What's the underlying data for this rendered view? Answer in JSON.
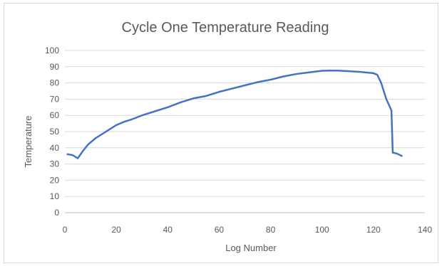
{
  "chart_data": {
    "type": "line",
    "title": "Cycle One Temperature Reading",
    "xlabel": "Log Number",
    "ylabel": "Temperature",
    "xlim": [
      0,
      140
    ],
    "ylim": [
      0,
      100
    ],
    "x_ticks": [
      0,
      20,
      40,
      60,
      80,
      100,
      120,
      140
    ],
    "y_ticks": [
      0,
      10,
      20,
      30,
      40,
      50,
      60,
      70,
      80,
      90,
      100
    ],
    "x_tick_labels": [
      "0",
      "20",
      "40",
      "60",
      "80",
      "100",
      "120",
      "140"
    ],
    "y_tick_labels": [
      "0",
      "10",
      "20",
      "30",
      "40",
      "50",
      "60",
      "70",
      "80",
      "90",
      "100"
    ],
    "grid": "horizontal",
    "legend": "none",
    "series": [
      {
        "color": "#4472c4",
        "x": [
          1,
          3,
          5,
          7,
          9,
          12,
          15,
          18,
          20,
          23,
          26,
          30,
          35,
          40,
          45,
          50,
          55,
          60,
          65,
          70,
          75,
          80,
          85,
          90,
          95,
          100,
          103,
          106,
          110,
          115,
          120,
          121.5,
          123,
          125,
          127,
          127.5,
          129,
          131
        ],
        "values": [
          36,
          35.5,
          33.5,
          38,
          42,
          46,
          49,
          52,
          54,
          56,
          57.5,
          60,
          62.5,
          65,
          68,
          70.5,
          72,
          74.5,
          76.5,
          78.5,
          80.5,
          82,
          84,
          85.5,
          86.5,
          87.5,
          87.6,
          87.6,
          87.3,
          86.8,
          86,
          85,
          80,
          70,
          63,
          37,
          36.5,
          35
        ]
      }
    ]
  }
}
